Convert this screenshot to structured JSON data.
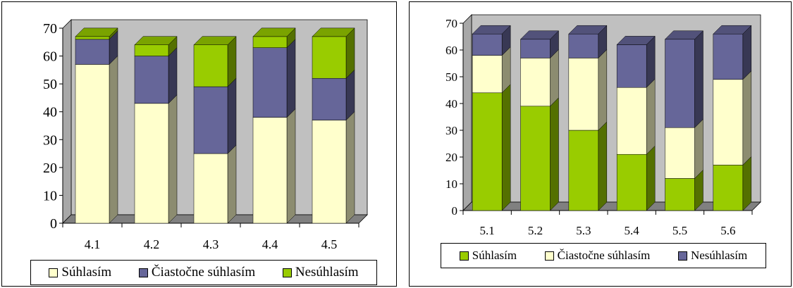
{
  "chart_data": [
    {
      "type": "bar",
      "stacked": true,
      "three_d": true,
      "categories": [
        "4.1",
        "4.2",
        "4.3",
        "4.4",
        "4.5"
      ],
      "series": [
        {
          "name": "Súhlasím",
          "color": "#ffffcc",
          "values": [
            57,
            43,
            25,
            38,
            37
          ]
        },
        {
          "name": "Čiastočne súhlasím",
          "color": "#666699",
          "values": [
            9,
            17,
            24,
            25,
            15
          ]
        },
        {
          "name": "Nesúhlasím",
          "color": "#99cc00",
          "values": [
            1,
            4,
            15,
            4,
            15
          ]
        }
      ],
      "ylim": [
        0,
        70
      ],
      "yticks": [
        "0",
        "10",
        "20",
        "30",
        "40",
        "50",
        "60",
        "70"
      ],
      "grid": false,
      "wall_color": "#c0c0c0",
      "legend_position": "bottom"
    },
    {
      "type": "bar",
      "stacked": true,
      "three_d": true,
      "categories": [
        "5.1",
        "5.2",
        "5.3",
        "5.4",
        "5.5",
        "5.6"
      ],
      "series": [
        {
          "name": "Súhlasím",
          "color": "#99cc00",
          "values": [
            44,
            39,
            30,
            21,
            12,
            17
          ]
        },
        {
          "name": "Čiastočne súhlasím",
          "color": "#ffffcc",
          "values": [
            14,
            18,
            27,
            25,
            19,
            32
          ]
        },
        {
          "name": "Nesúhlasím",
          "color": "#666699",
          "values": [
            8,
            7,
            9,
            16,
            33,
            17
          ]
        }
      ],
      "ylim": [
        0,
        70
      ],
      "yticks": [
        "0",
        "10",
        "20",
        "30",
        "40",
        "50",
        "60",
        "70"
      ],
      "grid": false,
      "wall_color": "#c0c0c0",
      "legend_position": "bottom"
    }
  ]
}
